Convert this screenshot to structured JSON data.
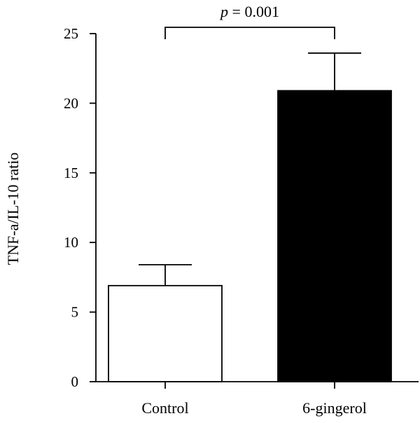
{
  "chart_data": {
    "type": "bar",
    "categories": [
      "Control",
      "6-gingerol"
    ],
    "values": [
      6.9,
      20.9
    ],
    "errors": [
      1.5,
      2.7
    ],
    "bar_colors": [
      "#ffffff",
      "#000000"
    ],
    "bar_edge_color": "#000000",
    "ylabel": "TNF-a/IL-10 ratio",
    "xlabel": "",
    "ylim": [
      0,
      25
    ],
    "yticks": [
      0,
      5,
      10,
      15,
      20,
      25
    ],
    "grid": false,
    "significance": {
      "between": [
        "Control",
        "6-gingerol"
      ],
      "p_symbol": "p",
      "p_text": " = 0.001"
    }
  }
}
